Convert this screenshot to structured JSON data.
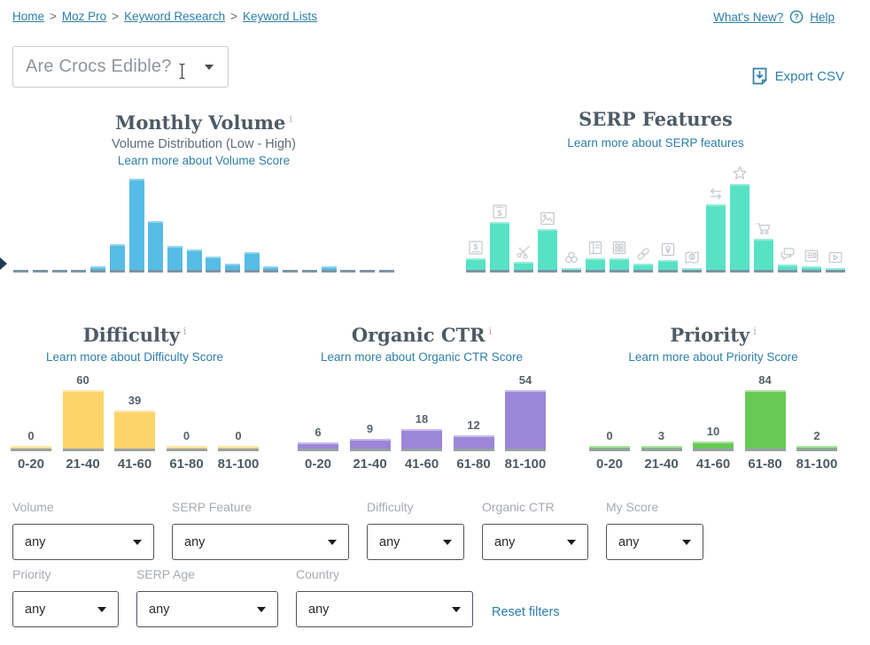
{
  "breadcrumb": {
    "separator": ">",
    "items": [
      {
        "label": "Home"
      },
      {
        "label": "Moz Pro"
      },
      {
        "label": "Keyword Research"
      },
      {
        "label": "Keyword Lists"
      }
    ]
  },
  "top_links": {
    "whats_new": "What's New?",
    "help": "Help"
  },
  "keyword_selector": {
    "value": "Are Crocs Edible?"
  },
  "export": {
    "label": "Export CSV"
  },
  "ui": {
    "info_glyph": "i"
  },
  "colors": {
    "link_blue": "#2d7ea8",
    "bar_blue": "#56bce6",
    "bar_teal": "#57e2c4",
    "bar_yellow": "#fcd469",
    "bar_purple": "#9c86d8",
    "bar_green": "#68ca55",
    "icon_gray": "#c2c8ce",
    "title_gray": "#4c5b66"
  },
  "chart_data": [
    {
      "id": "monthly_volume",
      "type": "bar",
      "title": "Monthly Volume",
      "subtitle": "Volume Distribution (Low - High)",
      "link": "Learn more about Volume Score",
      "note": "unlabeled histogram; values are relative bar heights in px, 0 = empty dash slot",
      "color": "#56bce6",
      "values": [
        0,
        0,
        0,
        0,
        4,
        29,
        103,
        55,
        27,
        23,
        15,
        7,
        20,
        4,
        0,
        0,
        4,
        0,
        0,
        0
      ]
    },
    {
      "id": "serp_features",
      "type": "bar",
      "title": "SERP Features",
      "link": "Learn more about SERP features",
      "note": "unlabeled histogram; values are relative bar heights in px; one icon per bar",
      "color": "#57e2c4",
      "icons": [
        "ad-top",
        "ad-bottom",
        "scissors",
        "image-pack",
        "knowledge-graph",
        "article",
        "sitelinks",
        "link",
        "local-pack",
        "map-dollar",
        "related-searches",
        "reviews-star",
        "shopping-cart",
        "questions",
        "news",
        "video"
      ],
      "values": [
        13,
        54,
        9,
        46,
        2,
        13,
        13,
        7,
        11,
        2,
        74,
        97,
        35,
        6,
        4,
        2
      ]
    },
    {
      "id": "difficulty",
      "type": "bar",
      "title": "Difficulty",
      "link": "Learn more about Difficulty Score",
      "categories": [
        "0-20",
        "21-40",
        "41-60",
        "61-80",
        "81-100"
      ],
      "values": [
        0,
        60,
        39,
        0,
        0
      ],
      "color": "#fcd469"
    },
    {
      "id": "organic_ctr",
      "type": "bar",
      "title": "Organic CTR",
      "link": "Learn more about Organic CTR Score",
      "categories": [
        "0-20",
        "21-40",
        "41-60",
        "61-80",
        "81-100"
      ],
      "values": [
        6,
        9,
        18,
        12,
        54
      ],
      "color": "#9c86d8"
    },
    {
      "id": "priority",
      "type": "bar",
      "title": "Priority",
      "link": "Learn more about Priority Score",
      "categories": [
        "0-20",
        "21-40",
        "41-60",
        "61-80",
        "81-100"
      ],
      "values": [
        0,
        3,
        10,
        84,
        2
      ],
      "color": "#68ca55"
    }
  ],
  "filters": {
    "volume": {
      "label": "Volume",
      "value": "any"
    },
    "serp_feature": {
      "label": "SERP Feature",
      "value": "any"
    },
    "difficulty": {
      "label": "Difficulty",
      "value": "any"
    },
    "organic_ctr": {
      "label": "Organic CTR",
      "value": "any"
    },
    "my_score": {
      "label": "My Score",
      "value": "any"
    },
    "priority": {
      "label": "Priority",
      "value": "any"
    },
    "serp_age": {
      "label": "SERP Age",
      "value": "any"
    },
    "country": {
      "label": "Country",
      "value": "any"
    },
    "reset": {
      "label": "Reset filters"
    }
  }
}
